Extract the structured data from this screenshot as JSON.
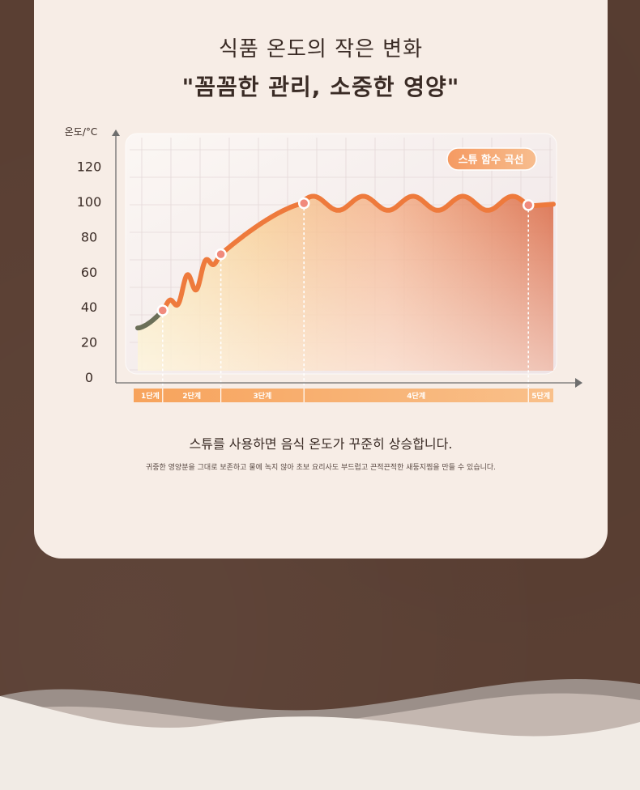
{
  "header": {
    "title": "식품 온도의 작은 변화",
    "subtitle": "\"꼼꼼한 관리, 소중한 영양\""
  },
  "chart_data": {
    "type": "line",
    "ylabel": "온도/°C",
    "y_ticks": [
      0,
      20,
      40,
      60,
      80,
      100,
      120
    ],
    "ylim": [
      0,
      130
    ],
    "legend_badge": "스튜 함수 곡선",
    "stages": [
      {
        "label": "1단계",
        "start": 0.0,
        "end": 0.3
      },
      {
        "label": "2단계",
        "start": 0.3,
        "end": 1.0
      },
      {
        "label": "3단계",
        "start": 1.0,
        "end": 2.0
      },
      {
        "label": "4단계",
        "start": 2.0,
        "end": 4.7
      },
      {
        "label": "5단계",
        "start": 4.7,
        "end": 5.0
      }
    ],
    "markers": [
      {
        "x": 0.3,
        "y": 38
      },
      {
        "x": 1.0,
        "y": 70
      },
      {
        "x": 2.0,
        "y": 99
      },
      {
        "x": 4.7,
        "y": 98
      }
    ],
    "colors": {
      "curve": "#ee7a3c",
      "curve_dark": "#d9541e",
      "start_segment": "#6b6f58",
      "marker": "#f08a7c",
      "stage_bar": "#f7a35c",
      "axis": "#6e6e6e"
    }
  },
  "description": {
    "main": "스튜를 사용하면 음식 온도가 꾸준히 상승합니다.",
    "sub": "귀중한 영양분을 그대로 보존하고 물에 녹지 않아 초보 요리사도 부드럽고 끈적끈적한 새둥지찜을 만들 수 있습니다."
  }
}
